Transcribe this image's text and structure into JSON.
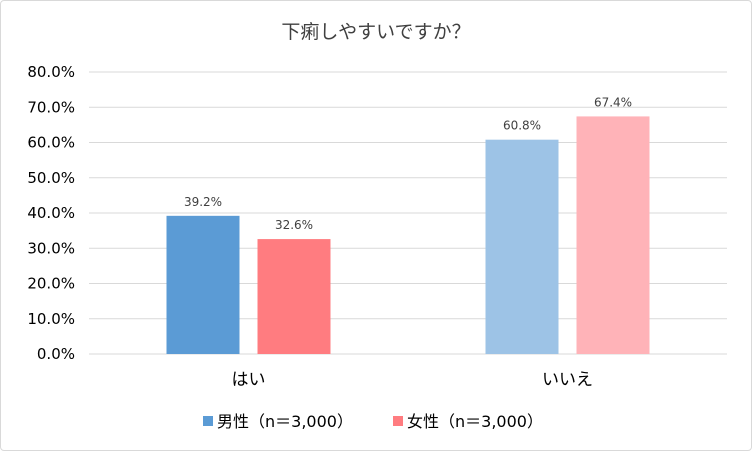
{
  "chart_data": {
    "type": "bar",
    "title": "下痢しやすいですか？",
    "categories": [
      "はい",
      "いいえ"
    ],
    "y_ticks": [
      "0.0%",
      "10.0%",
      "20.0%",
      "30.0%",
      "40.0%",
      "50.0%",
      "60.0%",
      "70.0%",
      "80.0%"
    ],
    "ylim": [
      0,
      80
    ],
    "grid": true,
    "legend_position": "bottom",
    "series": [
      {
        "name": "男性（n＝3,000）",
        "values": [
          39.2,
          60.8
        ],
        "labels": [
          "39.2%",
          "60.8%"
        ],
        "colors": [
          "#5b9bd5",
          "#9dc3e6"
        ]
      },
      {
        "name": "女性（n＝3,000）",
        "values": [
          32.6,
          67.4
        ],
        "labels": [
          "32.6%",
          "67.4%"
        ],
        "colors": [
          "#ff7c80",
          "#ffb3b8"
        ]
      }
    ]
  }
}
